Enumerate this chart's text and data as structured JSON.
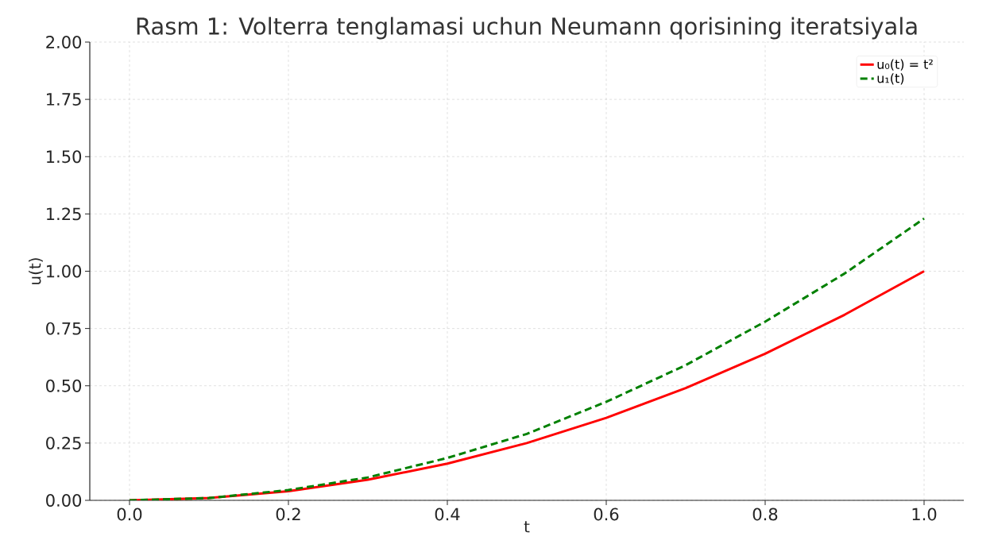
{
  "chart_data": {
    "type": "line",
    "title": "Rasm 1: Volterra tenglamasi uchun Neumann qorisining iteratsiyala",
    "xlabel": "t",
    "ylabel": "u(t)",
    "x": [
      0,
      0.1,
      0.2,
      0.3,
      0.4,
      0.5,
      0.6,
      0.7,
      0.8,
      0.9,
      1.0
    ],
    "series": [
      {
        "name": "u₀(t) = t²",
        "color": "#ff0000",
        "line_style": "solid",
        "values": [
          0,
          0.01,
          0.04,
          0.09,
          0.16,
          0.25,
          0.36,
          0.49,
          0.64,
          0.81,
          1.0
        ]
      },
      {
        "name": "u₁(t)",
        "color": "#008000",
        "line_style": "dashed",
        "values": [
          0,
          0.01,
          0.045,
          0.1,
          0.185,
          0.29,
          0.43,
          0.59,
          0.78,
          0.99,
          1.23
        ]
      }
    ],
    "xlim": [
      -0.05,
      1.05
    ],
    "ylim": [
      0,
      2
    ],
    "xticks": [
      {
        "value": 0,
        "label": "0.0"
      },
      {
        "value": 0.2,
        "label": "0.2"
      },
      {
        "value": 0.4,
        "label": "0.4"
      },
      {
        "value": 0.6,
        "label": "0.6"
      },
      {
        "value": 0.8,
        "label": "0.8"
      },
      {
        "value": 1.0,
        "label": "1.0"
      }
    ],
    "yticks": [
      {
        "value": 0,
        "label": "0.00"
      },
      {
        "value": 0.25,
        "label": "0.25"
      },
      {
        "value": 0.5,
        "label": "0.50"
      },
      {
        "value": 0.75,
        "label": "0.75"
      },
      {
        "value": 1,
        "label": "1.00"
      },
      {
        "value": 1.25,
        "label": "1.25"
      },
      {
        "value": 1.5,
        "label": "1.50"
      },
      {
        "value": 1.75,
        "label": "1.75"
      },
      {
        "value": 2,
        "label": "2.00"
      }
    ],
    "grid": true,
    "legend": "top right"
  }
}
